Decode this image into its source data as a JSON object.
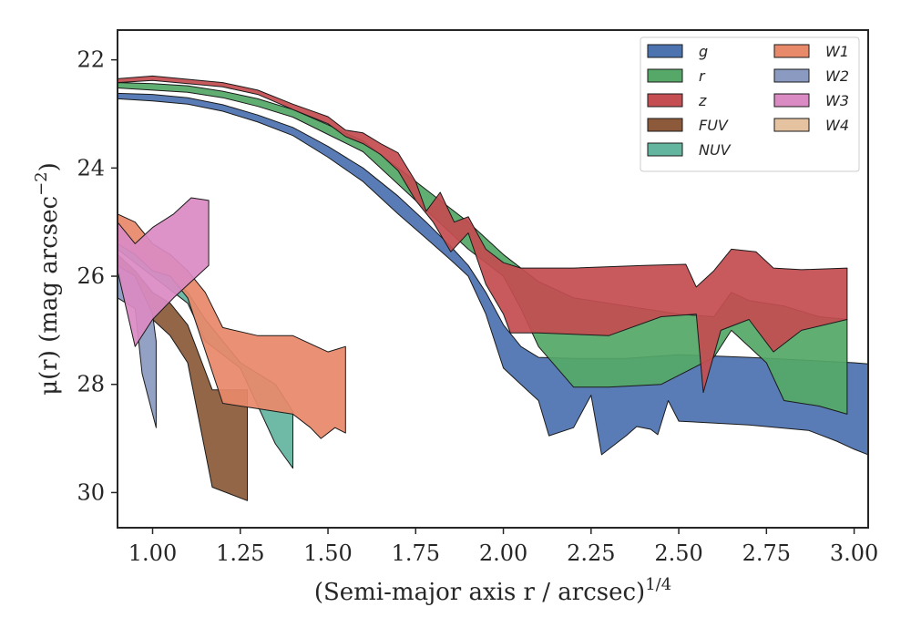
{
  "chart_data": {
    "type": "area",
    "xlabel": "(Semi-major axis r / arcsec)",
    "xlabel_exponent": "1/4",
    "ylabel": "μ(r) (mag arcsec",
    "ylabel_exponent": "−2",
    "ylabel_suffix": ")",
    "xlim": [
      0.9,
      3.04
    ],
    "ylim": [
      30.65,
      21.45
    ],
    "y_inverted": true,
    "xticks": [
      1.0,
      1.25,
      1.5,
      1.75,
      2.0,
      2.25,
      2.5,
      2.75,
      3.0
    ],
    "xtick_labels": [
      "1.00",
      "1.25",
      "1.50",
      "1.75",
      "2.00",
      "2.25",
      "2.50",
      "2.75",
      "3.00"
    ],
    "yticks": [
      22,
      24,
      26,
      28,
      30
    ],
    "ytick_labels": [
      "22",
      "24",
      "26",
      "28",
      "30"
    ],
    "grid": false,
    "legend_position": "top-right",
    "legend_columns": 2,
    "series": [
      {
        "name": "g",
        "color": "#4c72b0",
        "upper": [
          [
            0.9,
            22.62
          ],
          [
            1.0,
            22.64
          ],
          [
            1.1,
            22.7
          ],
          [
            1.2,
            22.83
          ],
          [
            1.3,
            23.02
          ],
          [
            1.4,
            23.25
          ],
          [
            1.5,
            23.6
          ],
          [
            1.6,
            24.0
          ],
          [
            1.7,
            24.52
          ],
          [
            1.78,
            25.0
          ],
          [
            1.85,
            25.45
          ],
          [
            1.9,
            25.8
          ],
          [
            1.95,
            26.3
          ],
          [
            2.0,
            26.9
          ],
          [
            2.05,
            27.3
          ],
          [
            2.1,
            27.5
          ],
          [
            2.2,
            27.52
          ],
          [
            2.35,
            27.52
          ],
          [
            2.5,
            27.45
          ],
          [
            2.7,
            27.5
          ],
          [
            2.85,
            27.55
          ],
          [
            3.0,
            27.6
          ],
          [
            3.04,
            27.62
          ]
        ],
        "lower": [
          [
            0.9,
            22.72
          ],
          [
            1.0,
            22.76
          ],
          [
            1.1,
            22.82
          ],
          [
            1.2,
            22.95
          ],
          [
            1.3,
            23.15
          ],
          [
            1.4,
            23.4
          ],
          [
            1.5,
            23.8
          ],
          [
            1.6,
            24.25
          ],
          [
            1.7,
            24.85
          ],
          [
            1.78,
            25.3
          ],
          [
            1.85,
            25.7
          ],
          [
            1.9,
            26.0
          ],
          [
            1.95,
            26.7
          ],
          [
            2.0,
            27.7
          ],
          [
            2.05,
            28.0
          ],
          [
            2.1,
            28.3
          ],
          [
            2.13,
            28.95
          ],
          [
            2.2,
            28.8
          ],
          [
            2.25,
            28.2
          ],
          [
            2.28,
            29.3
          ],
          [
            2.35,
            28.95
          ],
          [
            2.38,
            28.78
          ],
          [
            2.42,
            28.83
          ],
          [
            2.44,
            28.93
          ],
          [
            2.47,
            28.3
          ],
          [
            2.5,
            28.68
          ],
          [
            2.7,
            28.75
          ],
          [
            2.87,
            28.85
          ],
          [
            2.95,
            29.05
          ],
          [
            3.0,
            29.2
          ],
          [
            3.04,
            29.3
          ]
        ]
      },
      {
        "name": "r",
        "color": "#55a868",
        "upper": [
          [
            0.9,
            22.42
          ],
          [
            1.0,
            22.44
          ],
          [
            1.1,
            22.48
          ],
          [
            1.2,
            22.58
          ],
          [
            1.3,
            22.72
          ],
          [
            1.4,
            22.92
          ],
          [
            1.5,
            23.2
          ],
          [
            1.6,
            23.5
          ],
          [
            1.7,
            24.0
          ],
          [
            1.8,
            24.5
          ],
          [
            1.9,
            25.0
          ],
          [
            2.0,
            25.6
          ],
          [
            2.1,
            26.1
          ],
          [
            2.2,
            26.4
          ],
          [
            2.35,
            26.55
          ],
          [
            2.5,
            26.7
          ],
          [
            2.6,
            26.75
          ],
          [
            2.65,
            26.3
          ],
          [
            2.7,
            26.45
          ],
          [
            2.8,
            26.55
          ],
          [
            2.9,
            26.75
          ],
          [
            2.98,
            26.8
          ]
        ],
        "lower": [
          [
            0.9,
            22.52
          ],
          [
            1.0,
            22.56
          ],
          [
            1.1,
            22.6
          ],
          [
            1.2,
            22.7
          ],
          [
            1.3,
            22.86
          ],
          [
            1.4,
            23.06
          ],
          [
            1.5,
            23.38
          ],
          [
            1.6,
            23.7
          ],
          [
            1.7,
            24.3
          ],
          [
            1.8,
            24.9
          ],
          [
            1.9,
            25.5
          ],
          [
            2.0,
            26.0
          ],
          [
            2.05,
            26.6
          ],
          [
            2.1,
            27.3
          ],
          [
            2.2,
            28.05
          ],
          [
            2.3,
            28.05
          ],
          [
            2.45,
            28.0
          ],
          [
            2.6,
            27.5
          ],
          [
            2.65,
            27.0
          ],
          [
            2.75,
            27.6
          ],
          [
            2.8,
            28.3
          ],
          [
            2.9,
            28.4
          ],
          [
            2.98,
            28.55
          ]
        ]
      },
      {
        "name": "z",
        "color": "#c44e52",
        "upper": [
          [
            0.9,
            22.35
          ],
          [
            1.0,
            22.3
          ],
          [
            1.1,
            22.36
          ],
          [
            1.2,
            22.42
          ],
          [
            1.3,
            22.56
          ],
          [
            1.4,
            22.82
          ],
          [
            1.5,
            23.05
          ],
          [
            1.55,
            23.3
          ],
          [
            1.6,
            23.35
          ],
          [
            1.65,
            23.55
          ],
          [
            1.7,
            23.72
          ],
          [
            1.75,
            24.25
          ],
          [
            1.78,
            24.8
          ],
          [
            1.82,
            24.45
          ],
          [
            1.86,
            25.0
          ],
          [
            1.9,
            24.9
          ],
          [
            1.95,
            25.5
          ],
          [
            2.0,
            25.75
          ],
          [
            2.05,
            25.85
          ],
          [
            2.2,
            25.85
          ],
          [
            2.4,
            25.8
          ],
          [
            2.52,
            25.78
          ],
          [
            2.55,
            26.2
          ],
          [
            2.6,
            25.9
          ],
          [
            2.65,
            25.5
          ],
          [
            2.72,
            25.55
          ],
          [
            2.77,
            25.85
          ],
          [
            2.85,
            25.88
          ],
          [
            2.98,
            25.85
          ]
        ],
        "lower": [
          [
            0.9,
            22.42
          ],
          [
            1.0,
            22.38
          ],
          [
            1.1,
            22.44
          ],
          [
            1.2,
            22.5
          ],
          [
            1.3,
            22.64
          ],
          [
            1.4,
            22.92
          ],
          [
            1.5,
            23.18
          ],
          [
            1.55,
            23.42
          ],
          [
            1.6,
            23.55
          ],
          [
            1.65,
            23.75
          ],
          [
            1.7,
            24.05
          ],
          [
            1.75,
            24.6
          ],
          [
            1.8,
            25.0
          ],
          [
            1.85,
            25.55
          ],
          [
            1.9,
            25.2
          ],
          [
            1.95,
            26.15
          ],
          [
            2.0,
            26.7
          ],
          [
            2.02,
            27.05
          ],
          [
            2.1,
            27.05
          ],
          [
            2.3,
            27.1
          ],
          [
            2.45,
            26.75
          ],
          [
            2.55,
            26.7
          ],
          [
            2.57,
            28.15
          ],
          [
            2.62,
            27.0
          ],
          [
            2.7,
            26.8
          ],
          [
            2.77,
            27.4
          ],
          [
            2.85,
            27.0
          ],
          [
            2.98,
            26.8
          ]
        ]
      },
      {
        "name": "FUV",
        "color": "#8c5a3a",
        "upper": [
          [
            0.9,
            25.6
          ],
          [
            0.95,
            25.9
          ],
          [
            1.0,
            26.3
          ],
          [
            1.05,
            26.5
          ],
          [
            1.1,
            26.9
          ],
          [
            1.17,
            28.1
          ],
          [
            1.27,
            28.1
          ]
        ],
        "lower": [
          [
            0.9,
            26.0
          ],
          [
            0.95,
            26.3
          ],
          [
            1.0,
            26.8
          ],
          [
            1.05,
            27.1
          ],
          [
            1.1,
            27.6
          ],
          [
            1.17,
            29.9
          ],
          [
            1.27,
            30.15
          ]
        ]
      },
      {
        "name": "NUV",
        "color": "#64b5a0",
        "upper": [
          [
            0.9,
            25.2
          ],
          [
            1.0,
            25.7
          ],
          [
            1.1,
            26.3
          ],
          [
            1.15,
            26.8
          ],
          [
            1.25,
            27.6
          ],
          [
            1.35,
            28.0
          ],
          [
            1.4,
            28.5
          ]
        ],
        "lower": [
          [
            0.9,
            25.5
          ],
          [
            1.0,
            26.0
          ],
          [
            1.1,
            26.5
          ],
          [
            1.15,
            27.2
          ],
          [
            1.25,
            27.7
          ],
          [
            1.35,
            29.1
          ],
          [
            1.4,
            29.55
          ]
        ]
      },
      {
        "name": "W1",
        "color": "#e8896a",
        "upper": [
          [
            0.9,
            24.85
          ],
          [
            0.95,
            25.0
          ],
          [
            1.0,
            25.4
          ],
          [
            1.05,
            25.6
          ],
          [
            1.1,
            25.9
          ],
          [
            1.15,
            26.3
          ],
          [
            1.2,
            26.95
          ],
          [
            1.3,
            27.1
          ],
          [
            1.4,
            27.1
          ],
          [
            1.5,
            27.4
          ],
          [
            1.55,
            27.3
          ]
        ],
        "lower": [
          [
            0.9,
            25.4
          ],
          [
            0.95,
            25.6
          ],
          [
            1.0,
            25.9
          ],
          [
            1.05,
            26.0
          ],
          [
            1.1,
            26.4
          ],
          [
            1.2,
            28.35
          ],
          [
            1.3,
            28.45
          ],
          [
            1.4,
            28.55
          ],
          [
            1.45,
            28.8
          ],
          [
            1.48,
            29.0
          ],
          [
            1.52,
            28.8
          ],
          [
            1.55,
            28.9
          ]
        ]
      },
      {
        "name": "W2",
        "color": "#8a9ac0",
        "upper": [
          [
            0.9,
            25.8
          ],
          [
            0.95,
            26.0
          ],
          [
            1.0,
            26.7
          ],
          [
            1.01,
            27.2
          ]
        ],
        "lower": [
          [
            0.9,
            26.4
          ],
          [
            0.95,
            26.6
          ],
          [
            0.97,
            27.8
          ],
          [
            1.01,
            28.8
          ]
        ]
      },
      {
        "name": "W3",
        "color": "#da8bc3",
        "upper": [
          [
            0.9,
            25.0
          ],
          [
            0.95,
            25.4
          ],
          [
            1.0,
            25.1
          ],
          [
            1.06,
            24.85
          ],
          [
            1.11,
            24.55
          ],
          [
            1.16,
            24.6
          ]
        ],
        "lower": [
          [
            0.9,
            25.9
          ],
          [
            0.95,
            27.3
          ],
          [
            1.0,
            26.8
          ],
          [
            1.06,
            26.4
          ],
          [
            1.11,
            26.1
          ],
          [
            1.16,
            25.8
          ]
        ]
      },
      {
        "name": "W4",
        "color": "#e6c3a0",
        "upper": [],
        "lower": []
      }
    ]
  }
}
